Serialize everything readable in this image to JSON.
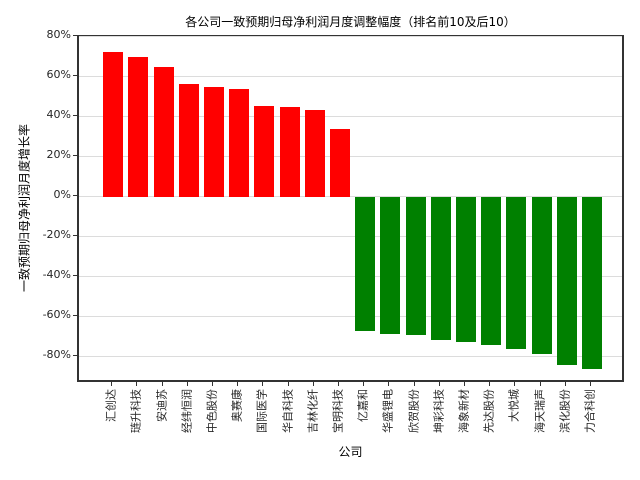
{
  "chart_data": {
    "type": "bar",
    "title": "各公司一致预期归母净利润月度调整幅度（排名前10及后10）",
    "xlabel": "公司",
    "ylabel": "一致预期归母净利润月度增长率",
    "categories": [
      "汇创达",
      "琏升科技",
      "安迪苏",
      "经纬恒润",
      "中色股份",
      "奥赛康",
      "国际医学",
      "华自科技",
      "吉林化纤",
      "宝明科技",
      "亿嘉和",
      "华盛锂电",
      "欣贺股份",
      "坤彩科技",
      "海象新材",
      "先达股份",
      "大悦城",
      "海天瑞声",
      "滨化股份",
      "力合科创"
    ],
    "values": [
      72.5,
      70,
      65,
      56.5,
      55,
      54,
      45.5,
      45,
      43.5,
      34,
      -67,
      -68.5,
      -69,
      -71.5,
      -72.5,
      -74,
      -76,
      -78.5,
      -84,
      -86
    ],
    "positive_color": "#ff0000",
    "negative_color": "#008000",
    "yticks": [
      80,
      60,
      40,
      20,
      0,
      -20,
      -40,
      -60,
      -80
    ],
    "ytick_suffix": "%",
    "ylim": [
      -93.5,
      80
    ],
    "grid": true,
    "legend": "none",
    "frame_color": "#333333",
    "gridline_color": "#dcdcdc"
  }
}
